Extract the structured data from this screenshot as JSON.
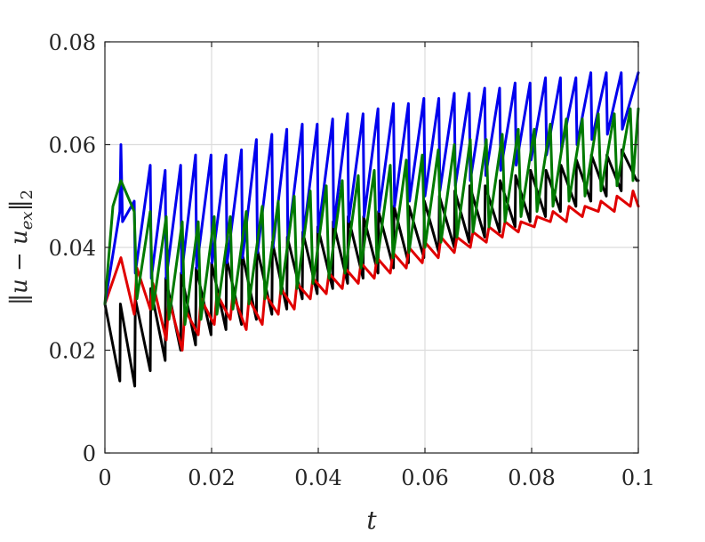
{
  "chart_data": {
    "type": "line",
    "title": "",
    "xlabel": "t",
    "ylabel_parts": {
      "open": "‖",
      "u1": "u",
      "minus": " − ",
      "u2": "u",
      "sub": "ex",
      "close": "‖",
      "norm": "2"
    },
    "xlim": [
      0,
      0.1
    ],
    "ylim": [
      0,
      0.08
    ],
    "xticks": [
      0,
      0.02,
      0.04,
      0.06,
      0.08,
      0.1
    ],
    "xtick_labels": [
      "0",
      "0.02",
      "0.04",
      "0.06",
      "0.08",
      "0.1"
    ],
    "yticks": [
      0,
      0.02,
      0.04,
      0.06,
      0.08
    ],
    "ytick_labels": [
      "0",
      "0.02",
      "0.04",
      "0.06",
      "0.08"
    ],
    "grid": true,
    "series": [
      {
        "color": "#000000",
        "x": [
          0,
          0.0028,
          0.0029,
          0.0056,
          0.0057,
          0.0085,
          0.0086,
          0.0113,
          0.0114,
          0.0142,
          0.0143,
          0.017,
          0.0171,
          0.0199,
          0.02,
          0.0227,
          0.0228,
          0.0256,
          0.0257,
          0.0284,
          0.0285,
          0.0313,
          0.0314,
          0.0341,
          0.0342,
          0.037,
          0.0371,
          0.0398,
          0.0399,
          0.0427,
          0.0428,
          0.0455,
          0.0456,
          0.0484,
          0.0485,
          0.0512,
          0.0513,
          0.0541,
          0.0542,
          0.0569,
          0.057,
          0.0598,
          0.0599,
          0.0626,
          0.0627,
          0.0655,
          0.0656,
          0.0683,
          0.0684,
          0.0712,
          0.0713,
          0.074,
          0.0741,
          0.0769,
          0.077,
          0.0797,
          0.0798,
          0.0826,
          0.0827,
          0.0854,
          0.0855,
          0.0883,
          0.0884,
          0.0911,
          0.0912,
          0.094,
          0.0941,
          0.0968,
          0.0969,
          0.0997,
          0.1
        ],
        "y": [
          0.029,
          0.014,
          0.029,
          0.013,
          0.03,
          0.016,
          0.032,
          0.018,
          0.034,
          0.02,
          0.035,
          0.021,
          0.036,
          0.023,
          0.037,
          0.024,
          0.038,
          0.025,
          0.039,
          0.026,
          0.04,
          0.027,
          0.041,
          0.028,
          0.042,
          0.03,
          0.043,
          0.031,
          0.044,
          0.032,
          0.045,
          0.033,
          0.046,
          0.034,
          0.046,
          0.035,
          0.047,
          0.036,
          0.048,
          0.037,
          0.048,
          0.038,
          0.049,
          0.039,
          0.05,
          0.04,
          0.051,
          0.041,
          0.052,
          0.042,
          0.052,
          0.043,
          0.053,
          0.044,
          0.054,
          0.045,
          0.055,
          0.046,
          0.055,
          0.047,
          0.056,
          0.048,
          0.057,
          0.049,
          0.058,
          0.05,
          0.058,
          0.051,
          0.059,
          0.053,
          0.053
        ]
      },
      {
        "color": "#e00000",
        "x": [
          0,
          0.003,
          0.0055,
          0.006,
          0.0085,
          0.009,
          0.0115,
          0.012,
          0.0145,
          0.015,
          0.0175,
          0.018,
          0.0205,
          0.021,
          0.0235,
          0.024,
          0.0265,
          0.027,
          0.0295,
          0.03,
          0.0325,
          0.033,
          0.0355,
          0.036,
          0.0385,
          0.039,
          0.0415,
          0.042,
          0.0445,
          0.045,
          0.0475,
          0.048,
          0.0505,
          0.051,
          0.0535,
          0.054,
          0.0565,
          0.057,
          0.0595,
          0.06,
          0.0625,
          0.063,
          0.0655,
          0.066,
          0.0685,
          0.069,
          0.0715,
          0.072,
          0.0745,
          0.075,
          0.0775,
          0.078,
          0.0805,
          0.081,
          0.0835,
          0.084,
          0.0865,
          0.087,
          0.0895,
          0.09,
          0.0925,
          0.093,
          0.0955,
          0.096,
          0.0985,
          0.099,
          0.1
        ],
        "y": [
          0.029,
          0.038,
          0.027,
          0.036,
          0.028,
          0.033,
          0.022,
          0.03,
          0.02,
          0.028,
          0.023,
          0.03,
          0.025,
          0.031,
          0.026,
          0.031,
          0.024,
          0.03,
          0.025,
          0.031,
          0.027,
          0.032,
          0.028,
          0.033,
          0.03,
          0.034,
          0.031,
          0.035,
          0.032,
          0.036,
          0.033,
          0.037,
          0.034,
          0.038,
          0.035,
          0.039,
          0.036,
          0.04,
          0.037,
          0.041,
          0.038,
          0.042,
          0.039,
          0.042,
          0.04,
          0.043,
          0.041,
          0.044,
          0.042,
          0.045,
          0.043,
          0.045,
          0.044,
          0.046,
          0.045,
          0.047,
          0.045,
          0.048,
          0.046,
          0.048,
          0.047,
          0.049,
          0.047,
          0.05,
          0.048,
          0.051,
          0.048
        ]
      },
      {
        "color": "#0000ee",
        "x": [
          0,
          0.0028,
          0.003,
          0.0033,
          0.0055,
          0.0057,
          0.0085,
          0.0087,
          0.0113,
          0.0115,
          0.0142,
          0.0144,
          0.017,
          0.0172,
          0.0199,
          0.0201,
          0.0227,
          0.0229,
          0.0256,
          0.0258,
          0.0284,
          0.0286,
          0.0313,
          0.0315,
          0.0341,
          0.0343,
          0.037,
          0.0372,
          0.0398,
          0.04,
          0.0427,
          0.0429,
          0.0455,
          0.0457,
          0.0484,
          0.0486,
          0.0512,
          0.0514,
          0.0541,
          0.0543,
          0.0569,
          0.0571,
          0.0598,
          0.06,
          0.0626,
          0.0628,
          0.0655,
          0.0657,
          0.0683,
          0.0685,
          0.0712,
          0.0714,
          0.074,
          0.0742,
          0.0769,
          0.0771,
          0.0797,
          0.0799,
          0.0826,
          0.0828,
          0.0854,
          0.0856,
          0.0883,
          0.0885,
          0.0911,
          0.0913,
          0.094,
          0.0942,
          0.0968,
          0.097,
          0.1
        ],
        "y": [
          0.029,
          0.047,
          0.06,
          0.045,
          0.049,
          0.035,
          0.056,
          0.034,
          0.055,
          0.034,
          0.056,
          0.035,
          0.058,
          0.036,
          0.058,
          0.037,
          0.058,
          0.037,
          0.059,
          0.038,
          0.061,
          0.039,
          0.062,
          0.04,
          0.063,
          0.041,
          0.064,
          0.042,
          0.064,
          0.043,
          0.065,
          0.044,
          0.066,
          0.045,
          0.066,
          0.046,
          0.067,
          0.047,
          0.068,
          0.048,
          0.068,
          0.049,
          0.069,
          0.05,
          0.069,
          0.051,
          0.07,
          0.052,
          0.07,
          0.053,
          0.071,
          0.054,
          0.071,
          0.055,
          0.072,
          0.056,
          0.072,
          0.057,
          0.073,
          0.058,
          0.073,
          0.059,
          0.073,
          0.06,
          0.074,
          0.061,
          0.074,
          0.062,
          0.074,
          0.063,
          0.074
        ]
      },
      {
        "color": "#007a00",
        "x": [
          0,
          0.0015,
          0.003,
          0.0055,
          0.006,
          0.0085,
          0.009,
          0.0115,
          0.012,
          0.0145,
          0.015,
          0.0175,
          0.018,
          0.0205,
          0.021,
          0.0235,
          0.024,
          0.0265,
          0.027,
          0.0295,
          0.03,
          0.0325,
          0.033,
          0.0355,
          0.036,
          0.0385,
          0.039,
          0.0415,
          0.042,
          0.0445,
          0.045,
          0.0475,
          0.048,
          0.0505,
          0.051,
          0.0535,
          0.054,
          0.0565,
          0.057,
          0.0595,
          0.06,
          0.0625,
          0.063,
          0.0655,
          0.066,
          0.0685,
          0.069,
          0.0715,
          0.072,
          0.0745,
          0.075,
          0.0775,
          0.078,
          0.0805,
          0.081,
          0.0835,
          0.084,
          0.0865,
          0.087,
          0.0895,
          0.09,
          0.0925,
          0.093,
          0.0955,
          0.096,
          0.0985,
          0.099,
          0.1
        ],
        "y": [
          0.029,
          0.048,
          0.053,
          0.047,
          0.03,
          0.047,
          0.028,
          0.046,
          0.026,
          0.045,
          0.025,
          0.045,
          0.026,
          0.046,
          0.027,
          0.046,
          0.028,
          0.047,
          0.029,
          0.048,
          0.03,
          0.049,
          0.031,
          0.05,
          0.032,
          0.051,
          0.033,
          0.052,
          0.034,
          0.053,
          0.035,
          0.054,
          0.036,
          0.055,
          0.037,
          0.056,
          0.038,
          0.057,
          0.039,
          0.058,
          0.04,
          0.059,
          0.041,
          0.06,
          0.042,
          0.061,
          0.043,
          0.061,
          0.044,
          0.062,
          0.045,
          0.063,
          0.046,
          0.063,
          0.047,
          0.064,
          0.048,
          0.065,
          0.049,
          0.065,
          0.05,
          0.066,
          0.051,
          0.066,
          0.052,
          0.067,
          0.053,
          0.067
        ]
      }
    ]
  }
}
